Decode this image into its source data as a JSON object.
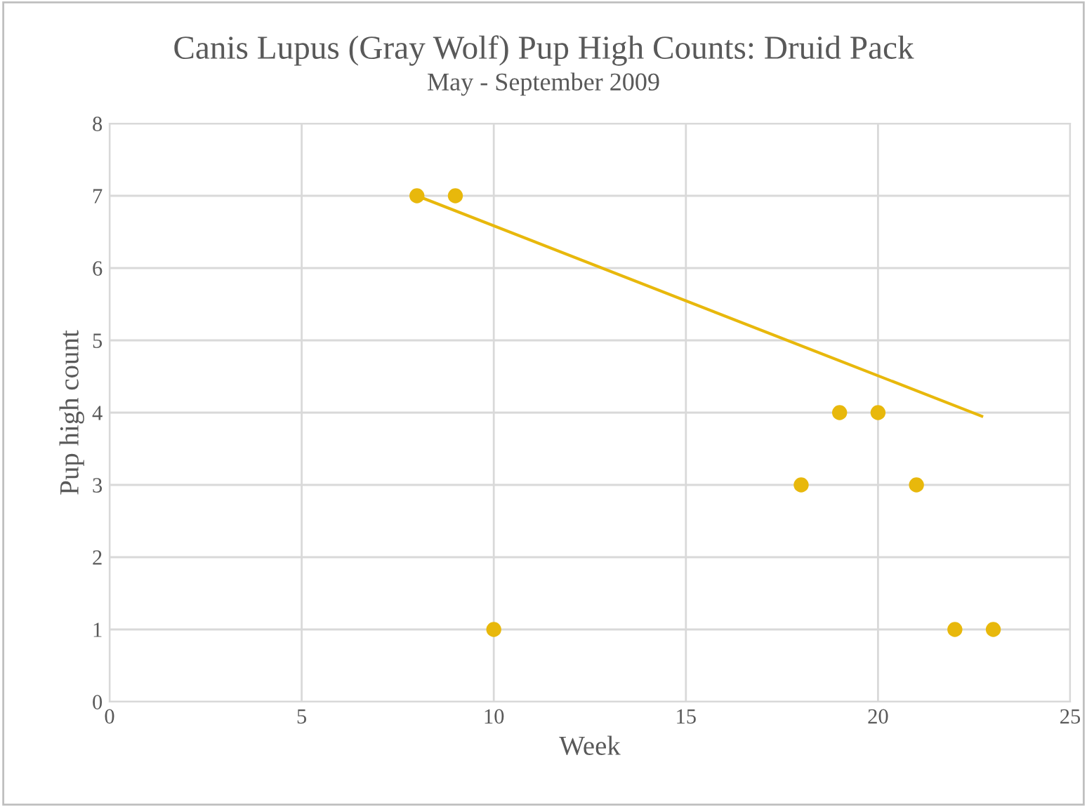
{
  "chart_data": {
    "type": "scatter",
    "title": "Canis Lupus (Gray Wolf) Pup High Counts: Druid Pack",
    "subtitle": "May - September 2009",
    "xlabel": "Week",
    "ylabel": "Pup high count",
    "series": [
      {
        "color": "#e8b80c",
        "x": [
          8,
          9,
          10,
          18,
          19,
          20,
          21,
          22,
          23
        ],
        "values": [
          7,
          7,
          1,
          3,
          4,
          4,
          3,
          1,
          1
        ],
        "marker": "circle"
      },
      {
        "type": "line",
        "color": "#e8b80c",
        "x": [
          8,
          22.7
        ],
        "values": [
          7.0,
          3.95
        ],
        "line_style": "solid"
      }
    ],
    "xlim": [
      0,
      25
    ],
    "xticks": [
      0,
      5,
      10,
      15,
      20,
      25
    ],
    "ylim": [
      0,
      8
    ],
    "yticks": [
      0,
      1,
      2,
      3,
      4,
      5,
      6,
      7,
      8
    ],
    "grid": true,
    "legend": false
  }
}
